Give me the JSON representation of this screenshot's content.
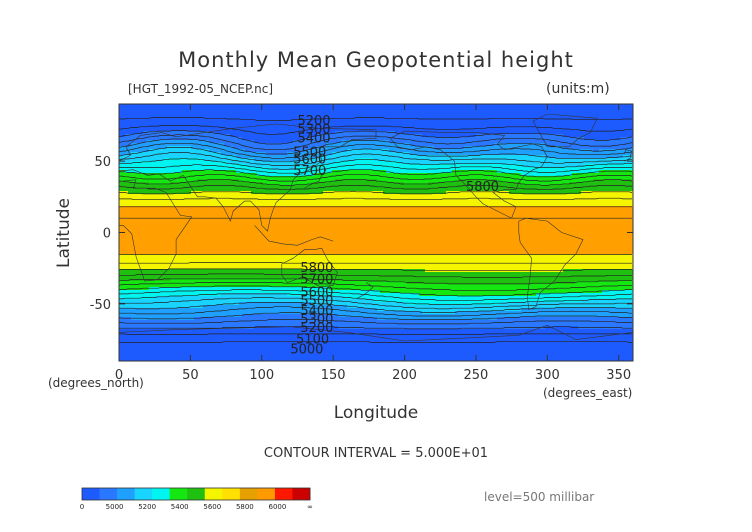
{
  "chart_data": {
    "type": "contour",
    "title": "Monthly Mean Geopotential height",
    "file_label": "[HGT_1992-05_NCEP.nc]",
    "units_label": "(units:m)",
    "xlabel": "Longitude",
    "ylabel": "Latitude",
    "xunit_label": "(degrees_east)",
    "yunit_label": "(degrees_north)",
    "xlim": [
      0,
      360
    ],
    "ylim": [
      -90,
      90
    ],
    "xticks": [
      0,
      50,
      100,
      150,
      200,
      250,
      300,
      350
    ],
    "yticks": [
      -50,
      0,
      50
    ],
    "contour_interval_label": "CONTOUR INTERVAL = 5.000E+01",
    "level_label": "level=500 millibar",
    "contour_labels": [
      {
        "text": "5200",
        "lon": 125,
        "lat": 78
      },
      {
        "text": "5300",
        "lon": 125,
        "lat": 72
      },
      {
        "text": "5400",
        "lon": 125,
        "lat": 66
      },
      {
        "text": "5500",
        "lon": 122,
        "lat": 56
      },
      {
        "text": "5600",
        "lon": 122,
        "lat": 51
      },
      {
        "text": "5700",
        "lon": 122,
        "lat": 43
      },
      {
        "text": "5800",
        "lon": 243,
        "lat": 32
      },
      {
        "text": "5800",
        "lon": 127,
        "lat": -25
      },
      {
        "text": "5700",
        "lon": 127,
        "lat": -33
      },
      {
        "text": "5600",
        "lon": 127,
        "lat": -42
      },
      {
        "text": "5500",
        "lon": 127,
        "lat": -48
      },
      {
        "text": "5400",
        "lon": 127,
        "lat": -55
      },
      {
        "text": "5300",
        "lon": 127,
        "lat": -61
      },
      {
        "text": "5200",
        "lon": 127,
        "lat": -67
      },
      {
        "text": "5100",
        "lon": 124,
        "lat": -75
      },
      {
        "text": "5000",
        "lon": 120,
        "lat": -82
      }
    ],
    "colorbar": {
      "levels": [
        "0",
        "5000",
        "5200",
        "5400",
        "5600",
        "5800",
        "6000",
        "∞"
      ],
      "colors": [
        "#1e5bff",
        "#2a78ff",
        "#1fa0ff",
        "#19d4ff",
        "#00f5f0",
        "#14e810",
        "#20c010",
        "#f5f500",
        "#ffe000",
        "#e6a000",
        "#ff9a00",
        "#ff1800",
        "#cc0000"
      ]
    },
    "bands": [
      {
        "level": 5000,
        "color": "#1e5bff"
      },
      {
        "level": 5100,
        "color": "#2a78ff"
      },
      {
        "level": 5200,
        "color": "#1fa0ff"
      },
      {
        "level": 5300,
        "color": "#19d4ff"
      },
      {
        "level": 5400,
        "color": "#00f5f0"
      },
      {
        "level": 5500,
        "color": "#14e810"
      },
      {
        "level": 5600,
        "color": "#20c010"
      },
      {
        "level": 5700,
        "color": "#f5f500"
      },
      {
        "level": 5800,
        "color": "#ffa000"
      }
    ]
  }
}
